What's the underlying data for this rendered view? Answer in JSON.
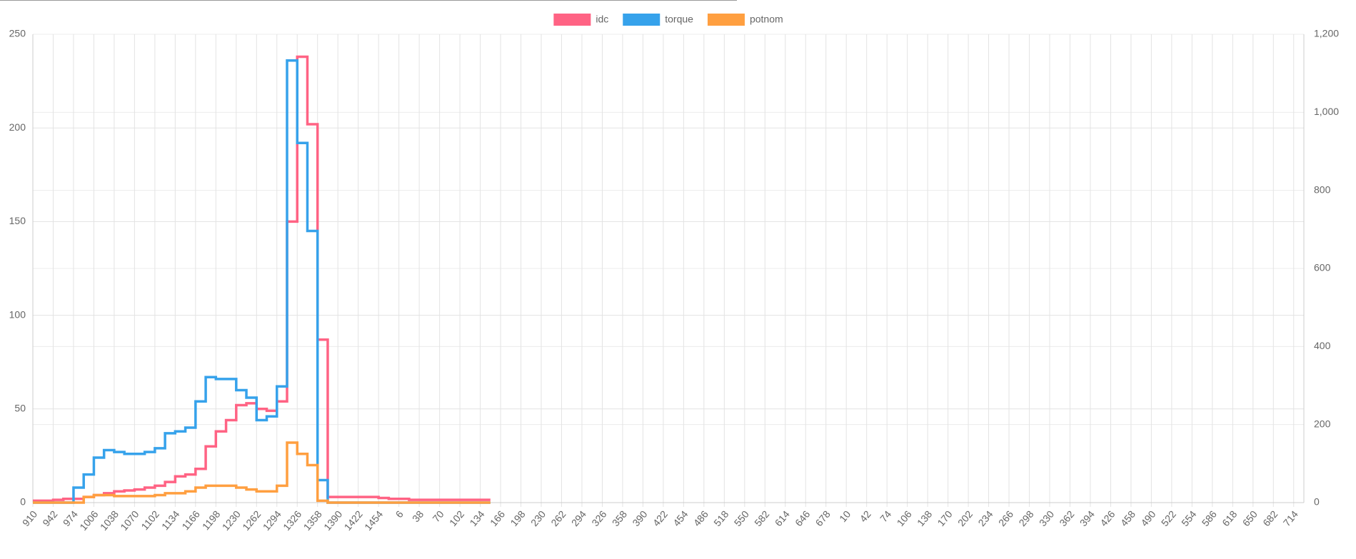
{
  "chart_data": {
    "type": "line",
    "stepped": true,
    "categories": [
      "910",
      null,
      "942",
      null,
      "974",
      null,
      "1006",
      null,
      "1038",
      null,
      "1070",
      null,
      "1102",
      null,
      "1134",
      null,
      "1166",
      null,
      "1198",
      null,
      "1230",
      null,
      "1262",
      null,
      "1294",
      null,
      "1326",
      null,
      "1358",
      null,
      "1390",
      null,
      "1422",
      null,
      "1454",
      null,
      "6",
      null,
      "38",
      null,
      "70",
      null,
      "102",
      null,
      "134",
      null,
      "166",
      null,
      "198",
      null,
      "230",
      null,
      "262",
      null,
      "294",
      null,
      "326",
      null,
      "358",
      null,
      "390",
      null,
      "422",
      null,
      "454",
      null,
      "486",
      null,
      "518",
      null,
      "550",
      null,
      "582",
      null,
      "614",
      null,
      "646",
      null,
      "678",
      null,
      "10",
      null,
      "42",
      null,
      "74",
      null,
      "106",
      null,
      "138",
      null,
      "170",
      null,
      "202",
      null,
      "234",
      null,
      "266",
      null,
      "298",
      null,
      "330",
      null,
      "362",
      null,
      "394",
      null,
      "426",
      null,
      "458",
      null,
      "490",
      null,
      "522",
      null,
      "554",
      null,
      "586",
      null,
      "618",
      null,
      "650",
      null,
      "682",
      null,
      "714",
      null
    ],
    "series": [
      {
        "name": "idc",
        "color": "#ff6384",
        "values": [
          1,
          1,
          1.5,
          2,
          2,
          3,
          4,
          5,
          6,
          6.5,
          7,
          8,
          9,
          11,
          14,
          15,
          18,
          30,
          38,
          44,
          52,
          53,
          50,
          49,
          54,
          150,
          238,
          202,
          87,
          3,
          3,
          3,
          3,
          3,
          2.5,
          2,
          2,
          1.5,
          1.5,
          1.5,
          1.5,
          1.5,
          1.5,
          1.5,
          1.5,
          1.5,
          null,
          null,
          null,
          null,
          null,
          null,
          null,
          null,
          null,
          null,
          null,
          null,
          null,
          null,
          null,
          null,
          null,
          null,
          null,
          null,
          null,
          null,
          null,
          null,
          null,
          null,
          null,
          null,
          null,
          null,
          null,
          null,
          null,
          null,
          null,
          null,
          null,
          null,
          null,
          null,
          null,
          null,
          null,
          null,
          null,
          null,
          null,
          null,
          null,
          null,
          null,
          null,
          null,
          null,
          null,
          null,
          null,
          null,
          null,
          null,
          null,
          null,
          null,
          null,
          null,
          null,
          null,
          null,
          null,
          null,
          null,
          null,
          null,
          null,
          null,
          null,
          null,
          null,
          null,
          null
        ]
      },
      {
        "name": "torque",
        "color": "#36a2eb",
        "values": [
          0,
          0,
          0,
          0,
          8,
          15,
          24,
          28,
          27,
          26,
          26,
          27,
          29,
          37,
          38,
          40,
          54,
          67,
          66,
          66,
          60,
          56,
          44,
          46,
          62,
          236,
          192,
          145,
          12,
          0,
          0,
          0,
          0,
          0,
          0,
          0,
          0,
          0,
          0,
          0,
          0,
          0,
          0,
          0,
          0,
          0,
          null,
          null,
          null,
          null,
          null,
          null,
          null,
          null,
          null,
          null,
          null,
          null,
          null,
          null,
          null,
          null,
          null,
          null,
          null,
          null,
          null,
          null,
          null,
          null,
          null,
          null,
          null,
          null,
          null,
          null,
          null,
          null,
          null,
          null,
          null,
          null,
          null,
          null,
          null,
          null,
          null,
          null,
          null,
          null,
          null,
          null,
          null,
          null,
          null,
          null,
          null,
          null,
          null,
          null,
          null,
          null,
          null,
          null,
          null,
          null,
          null,
          null,
          null,
          null,
          null,
          null,
          null,
          null,
          null,
          null,
          null,
          null,
          null,
          null,
          null,
          null,
          null,
          null,
          null,
          null
        ]
      },
      {
        "name": "potnom",
        "color": "#ff9f40",
        "values": [
          0,
          0,
          0,
          0,
          0,
          3,
          4,
          4,
          3.5,
          3.5,
          3.5,
          3.5,
          4,
          5,
          5,
          6,
          8,
          9,
          9,
          9,
          8,
          7,
          6,
          6,
          9,
          32,
          26,
          20,
          1,
          0,
          0,
          0,
          0,
          0,
          0,
          0,
          0,
          0,
          0,
          0,
          0,
          0,
          0,
          0,
          0,
          0,
          null,
          null,
          null,
          null,
          null,
          null,
          null,
          null,
          null,
          null,
          null,
          null,
          null,
          null,
          null,
          null,
          null,
          null,
          null,
          null,
          null,
          null,
          null,
          null,
          null,
          null,
          null,
          null,
          null,
          null,
          null,
          null,
          null,
          null,
          null,
          null,
          null,
          null,
          null,
          null,
          null,
          null,
          null,
          null,
          null,
          null,
          null,
          null,
          null,
          null,
          null,
          null,
          null,
          null,
          null,
          null,
          null,
          null,
          null,
          null,
          null,
          null,
          null,
          null,
          null,
          null,
          null,
          null,
          null,
          null,
          null,
          null,
          null,
          null,
          null,
          null,
          null,
          null,
          null,
          null
        ]
      }
    ],
    "ylim": [
      0,
      250
    ],
    "yticks": [
      0,
      50,
      100,
      150,
      200,
      250
    ],
    "y2lim": [
      0,
      1200
    ],
    "y2ticks": [
      0,
      200,
      400,
      600,
      800,
      {
        "value": 1000,
        "label": "1,000"
      },
      {
        "value": 1200,
        "label": "1,200"
      }
    ],
    "grid": true,
    "legend": "top"
  }
}
